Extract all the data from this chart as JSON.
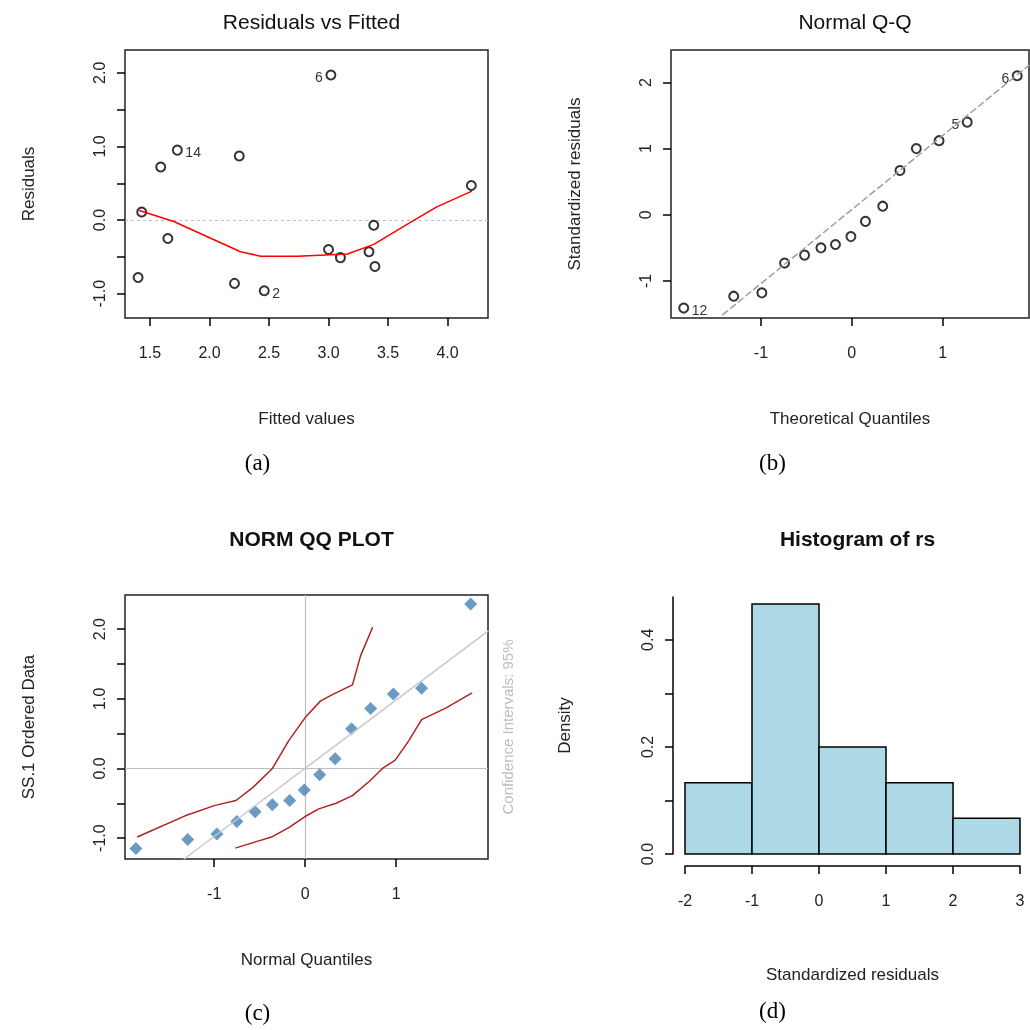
{
  "chart_data": [
    {
      "type": "scatter",
      "title": "Residuals vs Fitted",
      "xlabel": "Fitted values",
      "ylabel": "Residuals",
      "xlim": [
        1.29,
        4.34
      ],
      "ylim": [
        -1.33,
        2.31
      ],
      "xticks": [
        1.5,
        {
          "value": 2,
          "label": "2.0"
        },
        2.5,
        {
          "value": 3,
          "label": "3.0"
        },
        3.5,
        {
          "value": 4,
          "label": "4.0"
        }
      ],
      "yticks": [
        {
          "value": -1,
          "label": "-1.0"
        },
        {
          "value": -0.5,
          "label": null
        },
        {
          "value": 0,
          "label": "0.0"
        },
        {
          "value": 0.5,
          "label": null
        },
        {
          "value": 1,
          "label": "1.0"
        },
        {
          "value": 1.5,
          "label": null
        },
        {
          "value": 2,
          "label": "2.0"
        }
      ],
      "ref_lines": [
        {
          "axis": "y",
          "value": 0,
          "color": "#bebebe",
          "line_style": "dotted"
        }
      ],
      "series": [
        {
          "type": "scatter",
          "marker": "circle",
          "color": "#000000",
          "x": [
            1.4,
            1.43,
            1.59,
            1.65,
            1.73,
            2.21,
            2.25,
            2.46,
            3.02,
            3.0,
            3.1,
            3.34,
            3.38,
            3.39,
            4.2
          ],
          "values": [
            -0.78,
            0.11,
            0.72,
            -0.25,
            0.95,
            -0.86,
            0.87,
            -0.96,
            1.97,
            -0.4,
            -0.51,
            -0.43,
            -0.07,
            -0.63,
            0.47
          ]
        },
        {
          "type": "line",
          "marker": "none",
          "line_style": "solid",
          "color": "#ff0000",
          "x": [
            1.41,
            1.7,
            2.26,
            2.43,
            2.74,
            3.16,
            3.38,
            3.72,
            3.91,
            4.2
          ],
          "values": [
            0.13,
            -0.02,
            -0.43,
            -0.49,
            -0.49,
            -0.46,
            -0.33,
            0.0,
            0.18,
            0.39
          ]
        }
      ],
      "annotations": [
        {
          "text": "14",
          "x": 1.73,
          "y": 0.95
        },
        {
          "text": "2",
          "x": 2.46,
          "y": -0.96
        },
        {
          "text": "6",
          "x": 3.02,
          "y": 1.97
        },
        "(a)"
      ]
    },
    {
      "type": "scatter",
      "title": "Normal Q-Q",
      "xlabel": "Theoretical Quantiles",
      "ylabel": "Standardized residuals",
      "xlim": [
        -1.99,
        1.95
      ],
      "ylim": [
        -1.56,
        2.49
      ],
      "xticks": [
        -1,
        0,
        1
      ],
      "yticks": [
        -1,
        0,
        1,
        2
      ],
      "series": [
        {
          "type": "line",
          "marker": "none",
          "line_style": "dashed",
          "color": "#9e9e9e",
          "x": [
            -1.42,
            1.95
          ],
          "values": [
            -1.51,
            2.26
          ]
        },
        {
          "type": "scatter",
          "marker": "circle",
          "color": "#000000",
          "x": [
            -1.85,
            -1.3,
            -0.99,
            -0.74,
            -0.52,
            -0.34,
            -0.18,
            -0.01,
            0.15,
            0.34,
            0.53,
            0.71,
            0.96,
            1.27,
            1.82
          ],
          "values": [
            -1.41,
            -1.23,
            -1.18,
            -0.73,
            -0.61,
            -0.5,
            -0.45,
            -0.33,
            -0.1,
            0.13,
            0.67,
            1.0,
            1.12,
            1.4,
            2.1
          ]
        }
      ],
      "annotations": [
        {
          "text": "12",
          "x": -1.85,
          "y": -1.41
        },
        {
          "text": "5",
          "x": 1.27,
          "y": 1.4
        },
        {
          "text": "6",
          "x": 1.82,
          "y": 2.1
        },
        "(b)"
      ]
    },
    {
      "type": "scatter",
      "title": "NORM QQ PLOT",
      "xlabel": "Normal Quantiles",
      "ylabel": "SS.1 Ordered Data",
      "xlim": [
        -1.98,
        2.01
      ],
      "ylim": [
        -1.3,
        2.49
      ],
      "xticks": [
        -1,
        0,
        1
      ],
      "yticks": [
        {
          "value": -1,
          "label": "-1.0"
        },
        {
          "value": -0.5,
          "label": null
        },
        {
          "value": 0,
          "label": "0.0"
        },
        {
          "value": 0.5,
          "label": null
        },
        {
          "value": 1,
          "label": "1.0"
        },
        {
          "value": 1.5,
          "label": null
        },
        {
          "value": 2,
          "label": "2.0"
        }
      ],
      "ref_lines": [
        {
          "axis": "x",
          "value": 0,
          "color": "#bebebe",
          "line_style": "solid"
        },
        {
          "axis": "y",
          "value": 0,
          "color": "#bebebe",
          "line_style": "solid"
        }
      ],
      "series": [
        {
          "type": "line",
          "marker": "none",
          "line_style": "solid",
          "color": "#c8c8c8",
          "x": [
            -1.33,
            2.01
          ],
          "values": [
            -1.3,
            1.97
          ]
        },
        {
          "type": "line",
          "marker": "none",
          "line_style": "solid",
          "color": "#b22222",
          "x": [
            -1.84,
            -1.32,
            -0.99,
            -0.76,
            -0.58,
            -0.36,
            -0.18,
            0,
            0.17,
            0.3,
            0.52,
            0.61,
            0.74
          ],
          "values": [
            -0.98,
            -0.68,
            -0.53,
            -0.46,
            -0.28,
            0.0,
            0.4,
            0.73,
            0.97,
            1.06,
            1.2,
            1.62,
            2.02
          ]
        },
        {
          "type": "line",
          "marker": "none",
          "line_style": "solid",
          "color": "#b22222",
          "x": [
            -0.76,
            -0.51,
            -0.36,
            -0.18,
            0,
            0.15,
            0.34,
            0.52,
            0.71,
            0.85,
            0.99,
            1.14,
            1.28,
            1.55,
            1.83
          ],
          "values": [
            -1.14,
            -1.04,
            -0.98,
            -0.85,
            -0.69,
            -0.58,
            -0.5,
            -0.39,
            -0.18,
            0.0,
            0.12,
            0.4,
            0.7,
            0.87,
            1.08
          ]
        },
        {
          "type": "scatter",
          "marker": "diamond",
          "color": "#4682b4",
          "x": [
            -1.86,
            -1.29,
            -0.97,
            -0.75,
            -0.55,
            -0.36,
            -0.17,
            -0.01,
            0.16,
            0.33,
            0.51,
            0.72,
            0.97,
            1.28,
            1.82
          ],
          "values": [
            -1.15,
            -1.02,
            -0.94,
            -0.76,
            -0.62,
            -0.52,
            -0.46,
            -0.31,
            -0.09,
            0.14,
            0.57,
            0.86,
            1.07,
            1.15,
            2.36
          ]
        }
      ],
      "annotations": [
        "Confidence Intervals: 95%",
        "(c)"
      ]
    },
    {
      "type": "histogram",
      "title": "Histogram of rs",
      "xlabel": "Standardized residuals",
      "ylabel": "Density",
      "color": "#add8e6",
      "bins": [
        -2,
        -1,
        0,
        1,
        2,
        3
      ],
      "values": [
        0.133,
        0.467,
        0.2,
        0.133,
        0.067
      ],
      "xlim": [
        -2,
        3
      ],
      "ylim": [
        0,
        0.48
      ],
      "xticks": [
        -2,
        -1,
        0,
        1,
        2,
        3
      ],
      "yticks": [
        {
          "value": 0,
          "label": "0.0"
        },
        {
          "value": 0.1,
          "label": null
        },
        {
          "value": 0.2,
          "label": "0.2"
        },
        {
          "value": 0.3,
          "label": null
        },
        {
          "value": 0.4,
          "label": "0.4"
        }
      ],
      "annotations": [
        "(d)"
      ]
    }
  ]
}
